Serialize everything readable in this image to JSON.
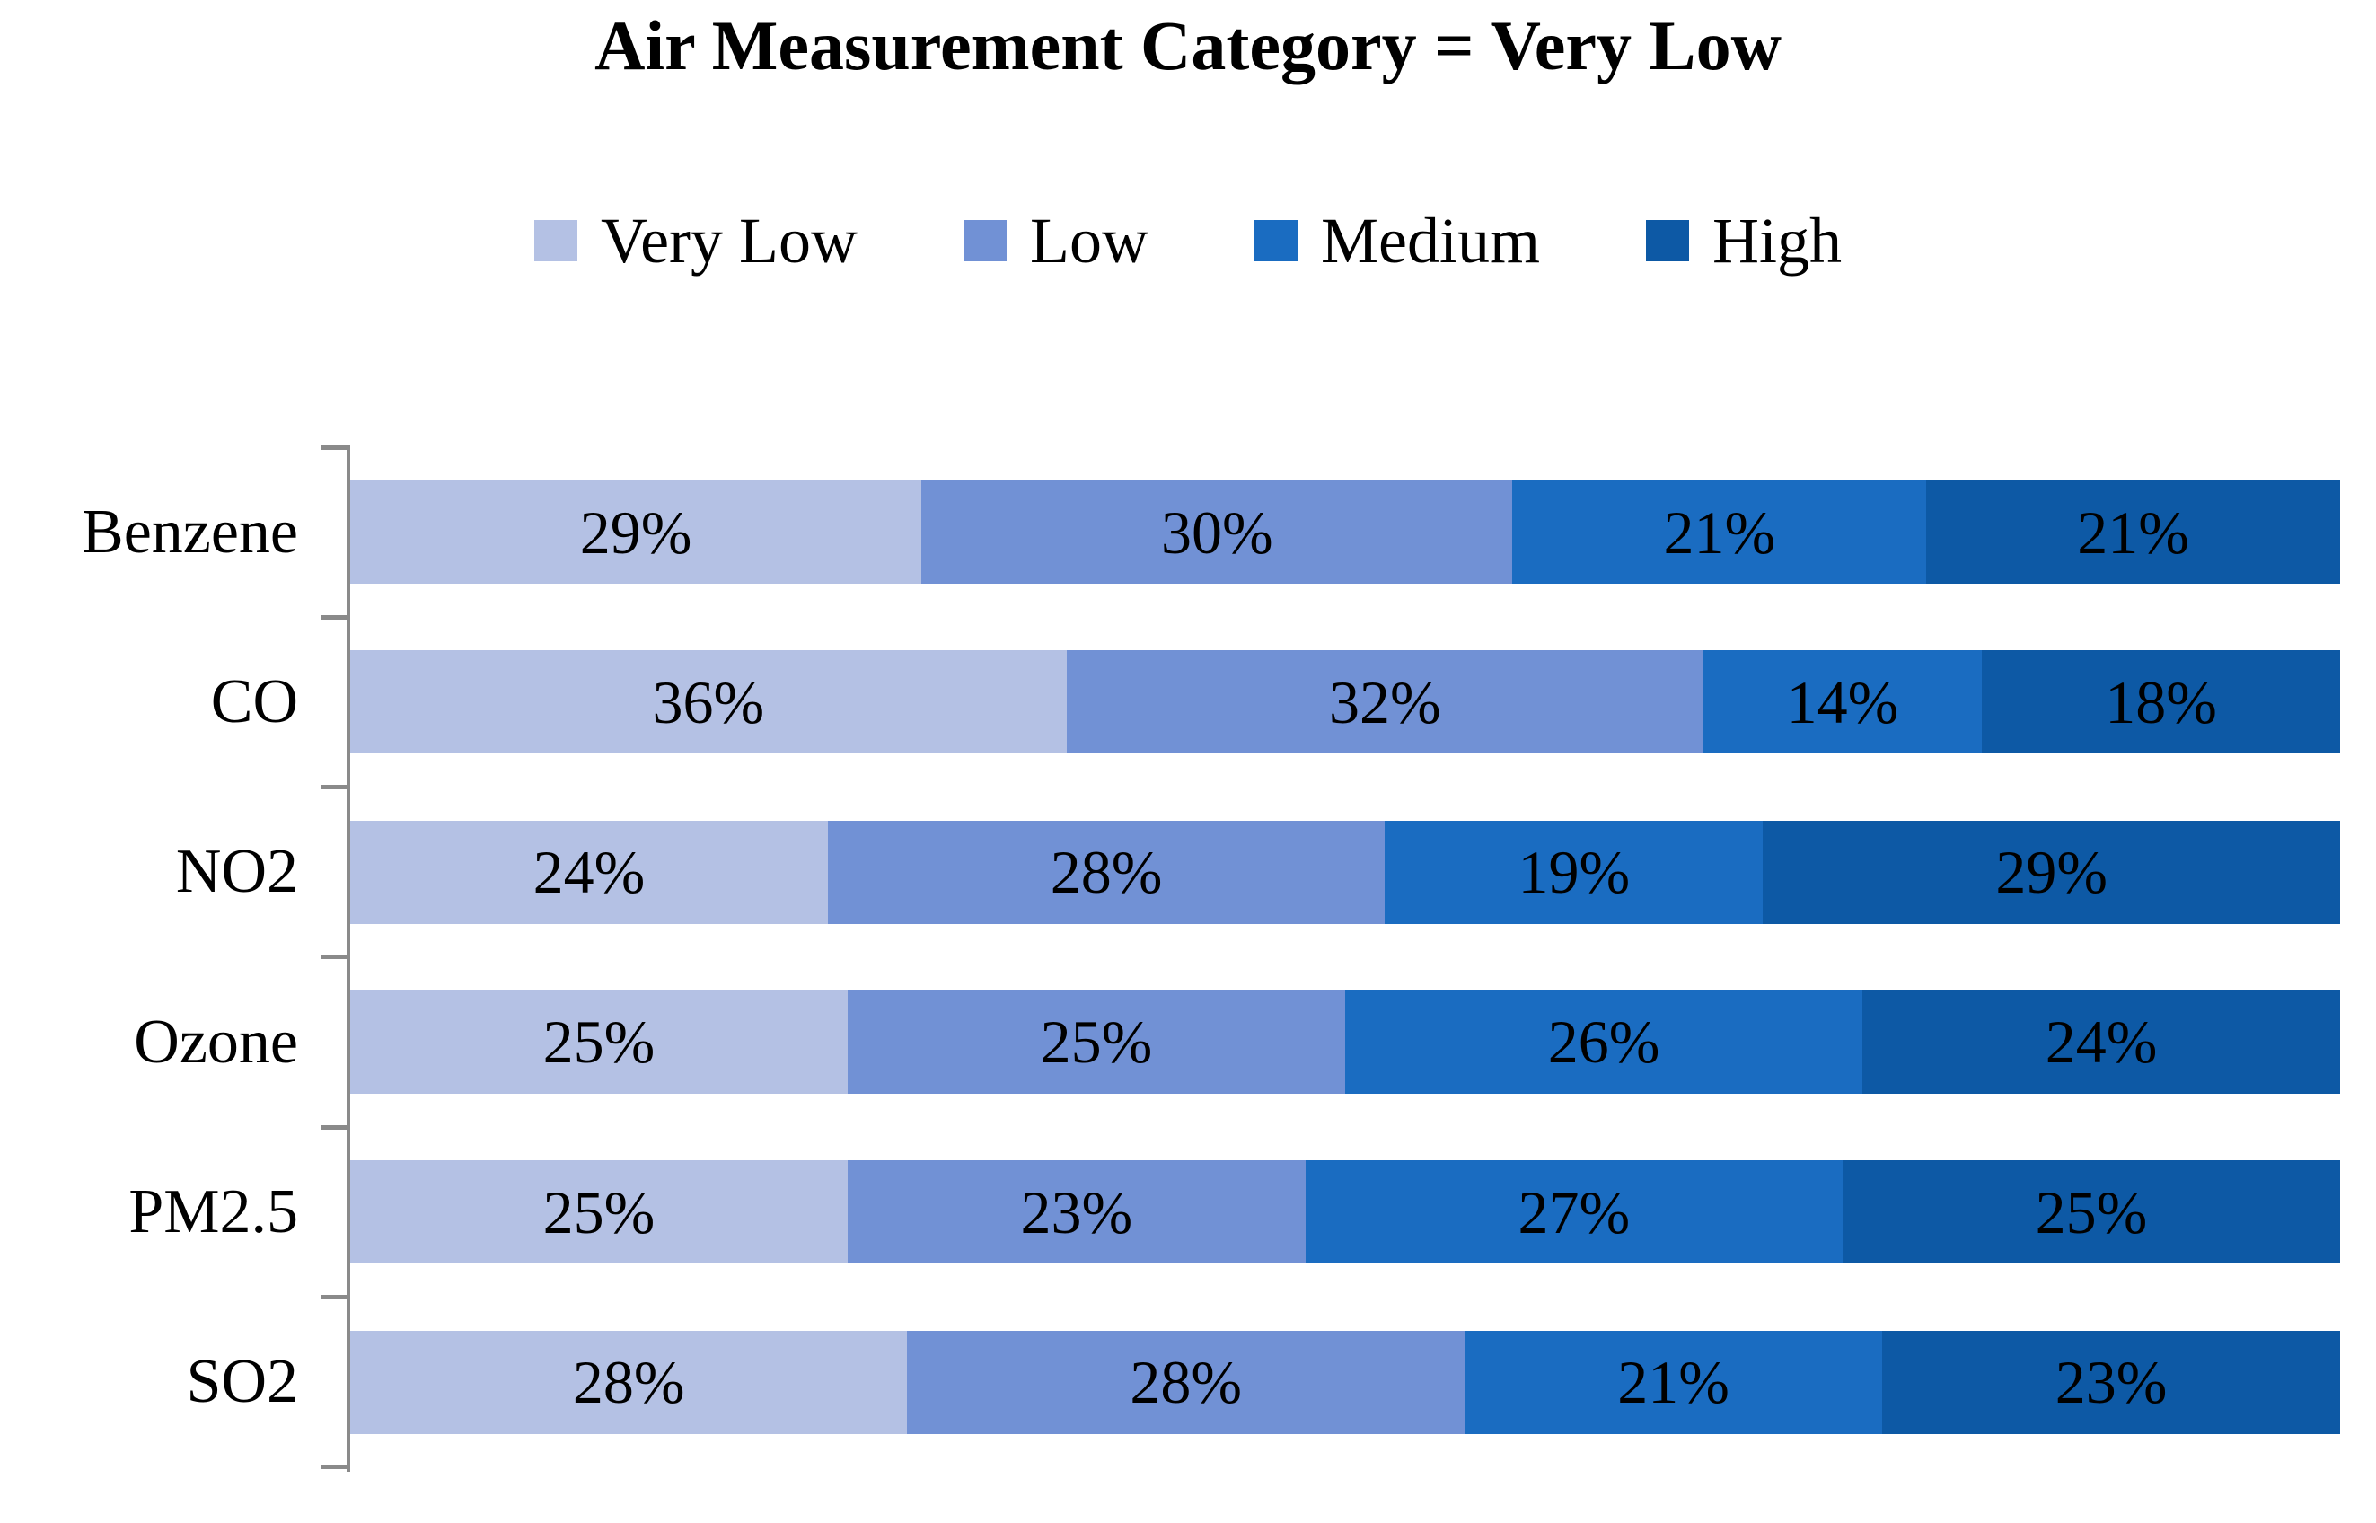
{
  "chart_data": {
    "type": "bar",
    "orientation": "horizontal",
    "stacked_percent": true,
    "title": "Air Measurement Category = Very Low",
    "legend_position": "top",
    "grid": false,
    "categories": [
      "Benzene",
      "CO",
      "NO2",
      "Ozone",
      "PM2.5",
      "SO2"
    ],
    "series": [
      {
        "name": "Very Low",
        "color": "#b4c1e4",
        "values": [
          29,
          36,
          24,
          25,
          25,
          28
        ]
      },
      {
        "name": "Low",
        "color": "#7191d5",
        "values": [
          30,
          32,
          28,
          25,
          23,
          28
        ]
      },
      {
        "name": "Medium",
        "color": "#1a6cc1",
        "values": [
          21,
          14,
          19,
          26,
          27,
          21
        ]
      },
      {
        "name": "High",
        "color": "#0d59a5",
        "values": [
          21,
          18,
          29,
          24,
          25,
          23
        ]
      }
    ],
    "value_suffix": "%",
    "axis_color": "#8a8a8a",
    "label_color": "#000000",
    "background_color": "#ffffff"
  }
}
